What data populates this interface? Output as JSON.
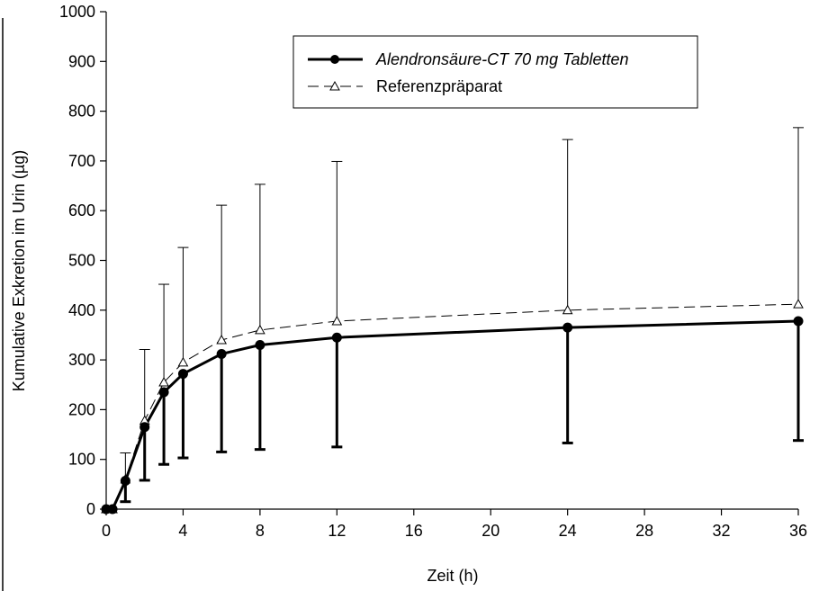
{
  "chart_data": {
    "type": "line",
    "title": "",
    "xlabel": "Zeit (h)",
    "ylabel": "Kumulative Exkretion im Urin (µg)",
    "xlim": [
      0,
      36
    ],
    "ylim": [
      0,
      1000
    ],
    "xticks": [
      0,
      4,
      8,
      12,
      16,
      20,
      24,
      28,
      32,
      36
    ],
    "yticks": [
      0,
      100,
      200,
      300,
      400,
      500,
      600,
      700,
      800,
      900,
      1000
    ],
    "xtick_labels": [
      "0",
      "4",
      "8",
      "12",
      "16",
      "20",
      "24",
      "28",
      "32",
      "36"
    ],
    "ytick_labels": [
      "0",
      "100",
      "200",
      "300",
      "400",
      "500",
      "600",
      "700",
      "800",
      "900",
      "1000"
    ],
    "grid": false,
    "legend": {
      "placement": "top-right"
    },
    "series": [
      {
        "name": "Alendronsäure-CT 70 mg Tabletten",
        "color": "#000000",
        "style": "solid",
        "marker": "filled-circle",
        "error_direction": "down",
        "points": [
          {
            "x": 0,
            "y": 0
          },
          {
            "x": 0.33,
            "y": 0
          },
          {
            "x": 1,
            "y": 57,
            "err": 42
          },
          {
            "x": 2,
            "y": 165,
            "err": 107
          },
          {
            "x": 3,
            "y": 235,
            "err": 145
          },
          {
            "x": 4,
            "y": 272,
            "err": 169
          },
          {
            "x": 6,
            "y": 312,
            "err": 197
          },
          {
            "x": 8,
            "y": 330,
            "err": 210
          },
          {
            "x": 12,
            "y": 345,
            "err": 220
          },
          {
            "x": 24,
            "y": 365,
            "err": 232
          },
          {
            "x": 36,
            "y": 378,
            "err": 240
          }
        ]
      },
      {
        "name": "Referenzpräparat",
        "color": "#000000",
        "style": "dashed",
        "marker": "open-triangle",
        "error_direction": "up",
        "points": [
          {
            "x": 0,
            "y": 0
          },
          {
            "x": 0.33,
            "y": 0
          },
          {
            "x": 1,
            "y": 60,
            "err": 53
          },
          {
            "x": 2,
            "y": 178,
            "err": 143
          },
          {
            "x": 3,
            "y": 255,
            "err": 197
          },
          {
            "x": 4,
            "y": 295,
            "err": 231
          },
          {
            "x": 6,
            "y": 340,
            "err": 271
          },
          {
            "x": 8,
            "y": 360,
            "err": 293
          },
          {
            "x": 12,
            "y": 378,
            "err": 321
          },
          {
            "x": 24,
            "y": 400,
            "err": 343
          },
          {
            "x": 36,
            "y": 412,
            "err": 355
          }
        ]
      }
    ]
  }
}
